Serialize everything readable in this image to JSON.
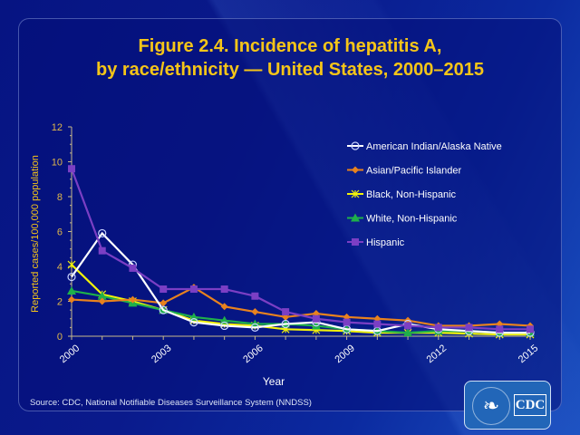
{
  "title_line1": "Figure 2.4. Incidence of hepatitis A,",
  "title_line2": "by race/ethnicity — United States, 2000–2015",
  "source": "Source: CDC, National  Notifiable Diseases Surveillance System (NNDSS)",
  "logo": {
    "text": "CDC",
    "icon": "hhs-eagle-icon"
  },
  "chart_data": {
    "type": "line",
    "title": "Figure 2.4. Incidence of hepatitis A, by race/ethnicity — United States, 2000–2015",
    "xlabel": "Year",
    "ylabel": "Reported cases/100,000 population",
    "x": [
      2000,
      2001,
      2002,
      2003,
      2004,
      2005,
      2006,
      2007,
      2008,
      2009,
      2010,
      2011,
      2012,
      2013,
      2014,
      2015
    ],
    "x_tick_labels": [
      "2000",
      "2003",
      "2006",
      "2009",
      "2012",
      "2015"
    ],
    "x_tick_values": [
      2000,
      2003,
      2006,
      2009,
      2012,
      2015
    ],
    "y_ticks": [
      0,
      2,
      4,
      6,
      8,
      10,
      12
    ],
    "ylim": [
      0,
      12
    ],
    "grid": false,
    "legend_position": "top-right",
    "series": [
      {
        "name": "American Indian/Alaska Native",
        "color": "#ffffff",
        "marker": "circle-open",
        "values": [
          3.4,
          5.9,
          4.1,
          1.5,
          0.8,
          0.6,
          0.5,
          0.7,
          0.8,
          0.4,
          0.3,
          0.7,
          0.4,
          0.3,
          0.2,
          0.2
        ]
      },
      {
        "name": "Asian/Pacific Islander",
        "color": "#e8821e",
        "marker": "diamond",
        "values": [
          2.1,
          2.0,
          2.1,
          1.9,
          2.8,
          1.7,
          1.4,
          1.1,
          1.3,
          1.1,
          1.0,
          0.9,
          0.6,
          0.6,
          0.7,
          0.6
        ]
      },
      {
        "name": "Black, Non-Hispanic",
        "color": "#f2f20a",
        "marker": "star",
        "values": [
          4.1,
          2.4,
          2.0,
          1.5,
          0.9,
          0.7,
          0.6,
          0.4,
          0.35,
          0.3,
          0.2,
          0.2,
          0.2,
          0.15,
          0.1,
          0.1
        ]
      },
      {
        "name": "White, Non-Hispanic",
        "color": "#1fb04a",
        "marker": "triangle",
        "values": [
          2.6,
          2.3,
          1.9,
          1.5,
          1.1,
          0.9,
          0.7,
          0.7,
          0.6,
          0.4,
          0.3,
          0.2,
          0.3,
          0.3,
          0.2,
          0.2
        ]
      },
      {
        "name": "Hispanic",
        "color": "#7b3fc4",
        "marker": "square",
        "values": [
          9.6,
          4.9,
          3.9,
          2.7,
          2.7,
          2.7,
          2.3,
          1.4,
          1.0,
          0.8,
          0.7,
          0.6,
          0.5,
          0.5,
          0.4,
          0.4
        ]
      }
    ]
  }
}
